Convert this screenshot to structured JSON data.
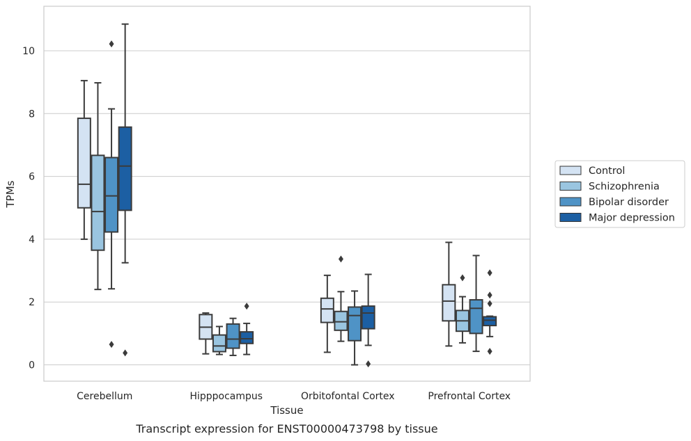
{
  "caption": "Transcript expression for ENST00000473798 by tissue",
  "colors": {
    "Control": "#d4e3f3",
    "Schizophrenia": "#9ac5e0",
    "Bipolar disorder": "#4f93c6",
    "Major depression": "#1c5fa3",
    "line": "#3b3b3b",
    "grid": "#cccccc",
    "frame": "#cccccc"
  },
  "chart_data": {
    "type": "boxplot",
    "xlabel": "Tissue",
    "ylabel": "TPMs",
    "ylim": [
      -0.5,
      11.4
    ],
    "yticks": [
      0,
      2,
      4,
      6,
      8,
      10
    ],
    "categories": [
      "Cerebellum",
      "Hipppocampus",
      "Orbitofontal Cortex",
      "Prefrontal Cortex"
    ],
    "legend": {
      "position": "right",
      "entries": [
        "Control",
        "Schizophrenia",
        "Bipolar disorder",
        "Major depression"
      ]
    },
    "grid": "horizontal",
    "series": [
      {
        "name": "Control",
        "boxes": [
          {
            "whislo": 4.0,
            "q1": 5.0,
            "med": 5.75,
            "q3": 7.85,
            "whishi": 9.05,
            "fliers": []
          },
          {
            "whislo": 0.35,
            "q1": 0.82,
            "med": 1.2,
            "q3": 1.6,
            "whishi": 1.65,
            "fliers": []
          },
          {
            "whislo": 0.4,
            "q1": 1.35,
            "med": 1.78,
            "q3": 2.12,
            "whishi": 2.85,
            "fliers": []
          },
          {
            "whislo": 0.6,
            "q1": 1.4,
            "med": 2.03,
            "q3": 2.55,
            "whishi": 3.9,
            "fliers": []
          }
        ]
      },
      {
        "name": "Schizophrenia",
        "boxes": [
          {
            "whislo": 2.4,
            "q1": 3.65,
            "med": 4.88,
            "q3": 6.67,
            "whishi": 8.98,
            "fliers": []
          },
          {
            "whislo": 0.33,
            "q1": 0.42,
            "med": 0.6,
            "q3": 0.95,
            "whishi": 1.22,
            "fliers": []
          },
          {
            "whislo": 0.75,
            "q1": 1.1,
            "med": 1.37,
            "q3": 1.7,
            "whishi": 2.33,
            "fliers": [
              3.37
            ]
          },
          {
            "whislo": 0.7,
            "q1": 1.07,
            "med": 1.4,
            "q3": 1.73,
            "whishi": 2.17,
            "fliers": [
              2.77
            ]
          }
        ]
      },
      {
        "name": "Bipolar disorder",
        "boxes": [
          {
            "whislo": 2.42,
            "q1": 4.23,
            "med": 5.38,
            "q3": 6.6,
            "whishi": 8.15,
            "fliers": [
              0.65,
              10.22
            ]
          },
          {
            "whislo": 0.3,
            "q1": 0.53,
            "med": 0.82,
            "q3": 1.3,
            "whishi": 1.48,
            "fliers": []
          },
          {
            "whislo": 0.0,
            "q1": 0.77,
            "med": 1.57,
            "q3": 1.84,
            "whishi": 2.35,
            "fliers": []
          },
          {
            "whislo": 0.43,
            "q1": 1.0,
            "med": 1.8,
            "q3": 2.07,
            "whishi": 3.48,
            "fliers": []
          }
        ]
      },
      {
        "name": "Major depression",
        "boxes": [
          {
            "whislo": 3.25,
            "q1": 4.92,
            "med": 6.33,
            "q3": 7.57,
            "whishi": 10.85,
            "fliers": [
              0.38
            ]
          },
          {
            "whislo": 0.33,
            "q1": 0.68,
            "med": 0.83,
            "q3": 1.05,
            "whishi": 1.32,
            "fliers": [
              1.87
            ]
          },
          {
            "whislo": 0.62,
            "q1": 1.15,
            "med": 1.65,
            "q3": 1.87,
            "whishi": 2.88,
            "fliers": [
              0.03
            ]
          },
          {
            "whislo": 0.9,
            "q1": 1.25,
            "med": 1.42,
            "q3": 1.53,
            "whishi": 1.55,
            "fliers": [
              0.43,
              1.95,
              2.22,
              2.93
            ]
          }
        ]
      }
    ]
  }
}
